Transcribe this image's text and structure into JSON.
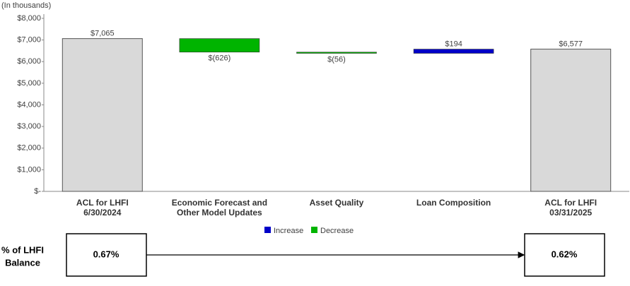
{
  "chart_data": {
    "type": "waterfall",
    "axis_note": "(In thousands)",
    "categories": [
      [
        "ACL for LHFI",
        "6/30/2024"
      ],
      [
        "Economic Forecast and",
        "Other Model Updates"
      ],
      [
        "Asset Quality"
      ],
      [
        "Loan Composition"
      ],
      [
        "ACL for LHFI",
        "03/31/2025"
      ]
    ],
    "measure": [
      "total",
      "relative",
      "relative",
      "relative",
      "total"
    ],
    "values": [
      7065,
      -626,
      -56,
      194,
      6577
    ],
    "value_labels": [
      "$7,065",
      "$(626)",
      "$(56)",
      "$194",
      "$6,577"
    ],
    "total_color": "#d9d9d9",
    "legend": [
      {
        "name": "Increase",
        "color": "#0000c8"
      },
      {
        "name": "Decrease",
        "color": "#00b400"
      }
    ],
    "ylim": [
      0,
      8000
    ],
    "yticks": [
      {
        "value": 0,
        "label": "$-"
      },
      {
        "value": 1000,
        "label": "$1,000"
      },
      {
        "value": 2000,
        "label": "$2,000"
      },
      {
        "value": 3000,
        "label": "$3,000"
      },
      {
        "value": 4000,
        "label": "$4,000"
      },
      {
        "value": 5000,
        "label": "$5,000"
      },
      {
        "value": 6000,
        "label": "$6,000"
      },
      {
        "value": 7000,
        "label": "$7,000"
      },
      {
        "value": 8000,
        "label": "$8,000"
      }
    ],
    "ratio": {
      "label": [
        "% of LHFI",
        "Balance"
      ],
      "start": "0.67%",
      "end": "0.62%"
    }
  }
}
